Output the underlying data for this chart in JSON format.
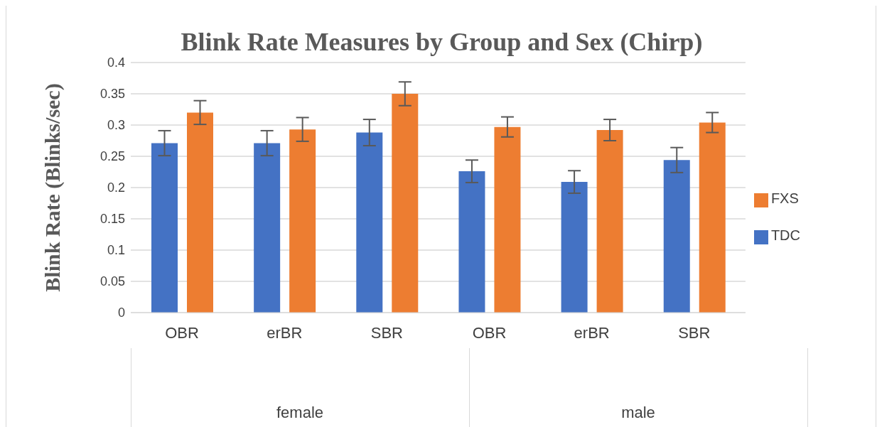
{
  "chart_data": {
    "type": "bar",
    "title": "Blink Rate Measures by Group and Sex (Chirp)",
    "ylabel": "Blink Rate (Blinks/sec)",
    "categories": [
      "OBR",
      "erBR",
      "SBR",
      "OBR",
      "erBR",
      "SBR"
    ],
    "annotations": [
      "female",
      "male"
    ],
    "series": [
      {
        "name": "TDC",
        "color": "#4472c4",
        "values": [
          0.271,
          0.271,
          0.288,
          0.226,
          0.209,
          0.244
        ],
        "errors": [
          0.02,
          0.02,
          0.021,
          0.018,
          0.018,
          0.02
        ]
      },
      {
        "name": "FXS",
        "color": "#ed7d31",
        "values": [
          0.32,
          0.293,
          0.35,
          0.297,
          0.292,
          0.304
        ],
        "errors": [
          0.019,
          0.019,
          0.019,
          0.016,
          0.017,
          0.016
        ]
      }
    ],
    "ylim": [
      0,
      0.4
    ],
    "yticks": [
      0,
      0.05,
      0.1,
      0.15,
      0.2,
      0.25,
      0.3,
      0.35,
      0.4
    ],
    "grid": "y",
    "legend": "right"
  }
}
